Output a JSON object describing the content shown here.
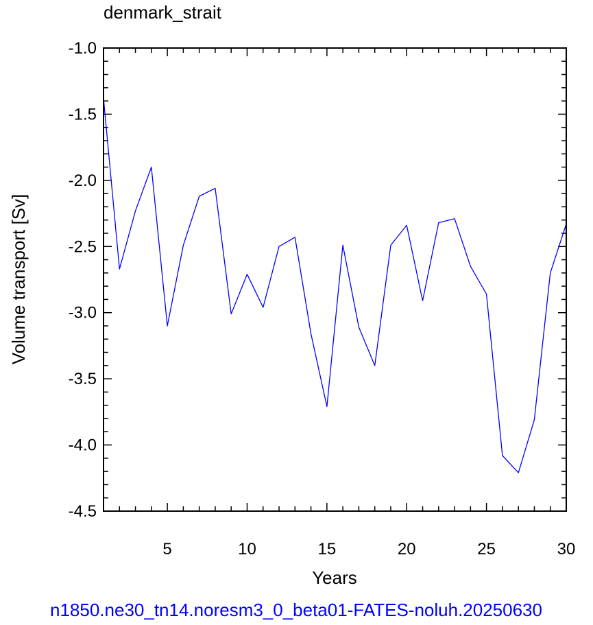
{
  "colors": {
    "series": "#0000ff",
    "caption": "#0000ff",
    "axis": "#000000"
  },
  "chart_data": {
    "type": "line",
    "title": "denmark_strait",
    "xlabel": "Years",
    "ylabel": "Volume transport [Sv]",
    "xlim": [
      1,
      30
    ],
    "ylim": [
      -4.5,
      -1.0
    ],
    "xticks": [
      5,
      10,
      15,
      20,
      25,
      30
    ],
    "xtick_labels": [
      "5",
      "10",
      "15",
      "20",
      "25",
      "30"
    ],
    "yticks": [
      -1.0,
      -1.5,
      -2.0,
      -2.5,
      -3.0,
      -3.5,
      -4.0,
      -4.5
    ],
    "ytick_labels": [
      "-1.0",
      "-1.5",
      "-2.0",
      "-2.5",
      "-3.0",
      "-3.5",
      "-4.0",
      "-4.5"
    ],
    "grid": false,
    "series": [
      {
        "x": [
          1,
          2,
          3,
          4,
          5,
          6,
          7,
          8,
          9,
          10,
          11,
          12,
          13,
          14,
          15,
          16,
          17,
          18,
          19,
          20,
          21,
          22,
          23,
          24,
          25,
          26,
          27,
          28,
          29,
          30
        ],
        "values": [
          -1.38,
          -2.67,
          -2.23,
          -1.9,
          -3.1,
          -2.49,
          -2.12,
          -2.06,
          -3.01,
          -2.71,
          -2.96,
          -2.5,
          -2.43,
          -3.16,
          -3.71,
          -2.49,
          -3.11,
          -3.4,
          -2.49,
          -2.34,
          -2.91,
          -2.32,
          -2.29,
          -2.65,
          -2.86,
          -4.08,
          -4.21,
          -3.81,
          -2.7,
          -2.33
        ]
      }
    ]
  },
  "caption": "n1850.ne30_tn14.noresm3_0_beta01-FATES-noluh.20250630"
}
